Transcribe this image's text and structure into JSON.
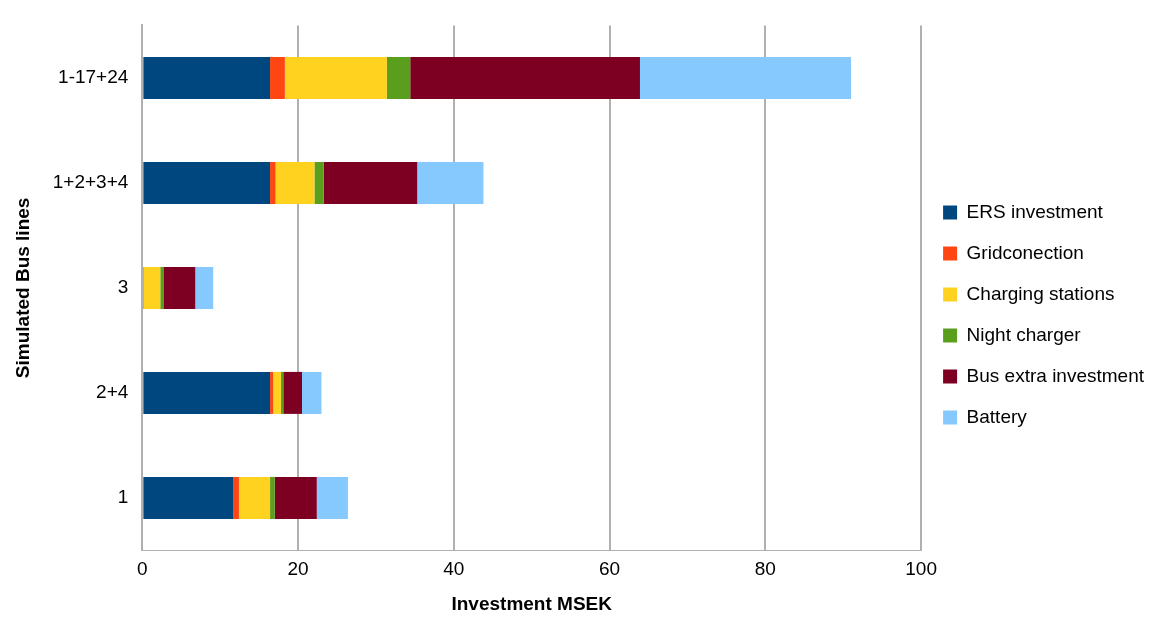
{
  "chart_data": {
    "type": "bar",
    "orientation": "horizontal",
    "stacked": true,
    "xlabel": "Investment MSEK",
    "ylabel": "Simulated Bus lines",
    "categories": [
      "1-17+24",
      "1+2+3+4",
      "3",
      "2+4",
      "1"
    ],
    "series": [
      {
        "name": "ERS investment",
        "color": "#00477f",
        "values": [
          16.4,
          16.4,
          0,
          16.4,
          11.7
        ]
      },
      {
        "name": "Gridconection",
        "color": "#ff4612",
        "values": [
          1.9,
          0.7,
          0.2,
          0.4,
          0.7
        ]
      },
      {
        "name": "Charging stations",
        "color": "#ffd220",
        "values": [
          13.1,
          5.0,
          2.1,
          1.0,
          4.0
        ]
      },
      {
        "name": "Night charger",
        "color": "#5a9e1e",
        "values": [
          3.0,
          1.2,
          0.4,
          0.3,
          0.6
        ]
      },
      {
        "name": "Bus extra investment",
        "color": "#7d0022",
        "values": [
          29.5,
          12.0,
          4.1,
          2.4,
          5.4
        ]
      },
      {
        "name": "Battery",
        "color": "#86c9ff",
        "values": [
          27.1,
          8.5,
          2.3,
          2.5,
          4.0
        ]
      }
    ],
    "xlim": [
      0,
      100
    ],
    "xticks": [
      0,
      20,
      40,
      60,
      80,
      100
    ],
    "grid": "x",
    "legend": "right"
  }
}
